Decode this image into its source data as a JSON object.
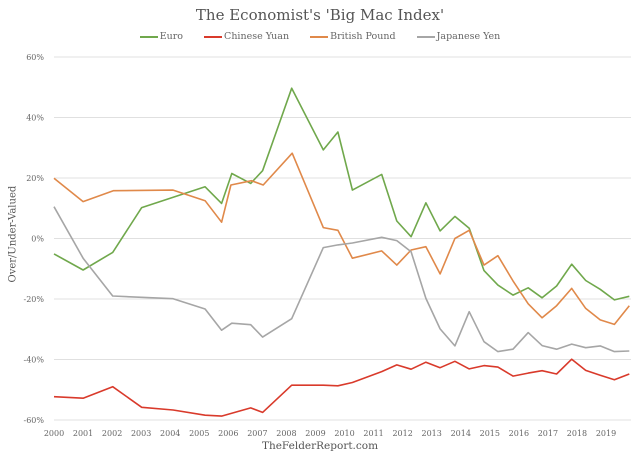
{
  "chart_data": {
    "type": "line",
    "title": "The Economist's 'Big Mac Index'",
    "xlabel": "",
    "ylabel": "Over/Under-Valued",
    "source": "TheFelderReport.com",
    "xlim": [
      2000,
      2019.86
    ],
    "ylim": [
      -60,
      60
    ],
    "yticks": [
      60,
      40,
      20,
      0,
      -20,
      -40,
      -60
    ],
    "ytick_labels": [
      "60%",
      "40%",
      "20%",
      "0%",
      "-20%",
      "-40%",
      "-60%"
    ],
    "xticks": [
      2000,
      2001,
      2002,
      2003,
      2004,
      2005,
      2006,
      2007,
      2008,
      2009,
      2010,
      2011,
      2012,
      2013,
      2014,
      2015,
      2016,
      2017,
      2018,
      2019
    ],
    "xtick_labels": [
      "2000",
      "2001",
      "2002",
      "2003",
      "2004",
      "2005",
      "2006",
      "2007",
      "2008",
      "2009",
      "2010",
      "2011",
      "2012",
      "2013",
      "2014",
      "2015",
      "2016",
      "2017",
      "2018",
      "2019"
    ],
    "grid": true,
    "legend_position": "top",
    "series": [
      {
        "name": "Euro",
        "color": "#70a84c",
        "x": [
          2000,
          2001,
          2002.02,
          2003.02,
          2005.2,
          2005.77,
          2006.12,
          2006.77,
          2007.18,
          2008.18,
          2009.27,
          2009.77,
          2010.27,
          2011.28,
          2011.8,
          2012.29,
          2012.8,
          2013.29,
          2013.8,
          2014.29,
          2014.8,
          2015.28,
          2015.8,
          2016.32,
          2016.8,
          2017.3,
          2017.82,
          2018.3,
          2018.8,
          2019.29,
          2019.8
        ],
        "y": [
          -5.1,
          -10.4,
          -4.6,
          10.2,
          17.1,
          11.6,
          21.5,
          18.2,
          22.4,
          49.7,
          29.3,
          35.2,
          16,
          21.2,
          5.8,
          0.6,
          11.8,
          2.5,
          7.3,
          3.4,
          -10.6,
          -15.4,
          -18.7,
          -16.3,
          -19.6,
          -15.7,
          -8.5,
          -13.9,
          -16.8,
          -20.3,
          -19.1
        ]
      },
      {
        "name": "Chinese Yuan",
        "color": "#d93a2b",
        "x": [
          2000,
          2001,
          2002.02,
          2003.02,
          2004.1,
          2005.2,
          2005.77,
          2006.77,
          2007.18,
          2008.18,
          2009.27,
          2009.77,
          2010.27,
          2011.28,
          2011.8,
          2012.29,
          2012.8,
          2013.29,
          2013.8,
          2014.29,
          2014.8,
          2015.28,
          2015.8,
          2016.32,
          2016.8,
          2017.3,
          2017.82,
          2018.3,
          2018.8,
          2019.29,
          2019.8
        ],
        "y": [
          -52.3,
          -52.8,
          -49,
          -55.8,
          -56.7,
          -58.4,
          -58.7,
          -56,
          -57.5,
          -48.5,
          -48.5,
          -48.7,
          -47.6,
          -44,
          -41.8,
          -43.2,
          -40.9,
          -42.7,
          -40.6,
          -43.1,
          -42,
          -42.5,
          -45.5,
          -44.5,
          -43.7,
          -44.8,
          -39.9,
          -43.6,
          -45.2,
          -46.7,
          -44.8
        ]
      },
      {
        "name": "British Pound",
        "color": "#e0894a",
        "x": [
          2000,
          2001,
          2002.04,
          2004.1,
          2005.2,
          2005.77,
          2006.09,
          2006.8,
          2007.2,
          2008.2,
          2009.27,
          2009.77,
          2010.27,
          2011.28,
          2011.8,
          2012.29,
          2012.8,
          2013.29,
          2013.8,
          2014.29,
          2014.8,
          2015.28,
          2015.8,
          2016.32,
          2016.8,
          2017.3,
          2017.82,
          2018.3,
          2018.8,
          2019.29,
          2019.8
        ],
        "y": [
          19.9,
          12.2,
          15.8,
          16,
          12.5,
          5.4,
          17.7,
          19.1,
          17.7,
          28.2,
          3.6,
          2.7,
          -6.5,
          -4.1,
          -8.8,
          -3.8,
          -2.7,
          -11.7,
          0,
          2.7,
          -8.8,
          -5.7,
          -14,
          -21.6,
          -26.2,
          -22.2,
          -16.5,
          -23.1,
          -26.9,
          -28.4,
          -22.2
        ]
      },
      {
        "name": "Japanese Yen",
        "color": "#a6a6a6",
        "x": [
          2000,
          2001,
          2002.02,
          2004.1,
          2005.2,
          2005.77,
          2006.12,
          2006.77,
          2007.18,
          2008.18,
          2009.27,
          2009.77,
          2010.27,
          2011.28,
          2011.8,
          2012.29,
          2012.8,
          2013.29,
          2013.8,
          2014.29,
          2014.8,
          2015.28,
          2015.8,
          2016.32,
          2016.8,
          2017.3,
          2017.82,
          2018.3,
          2018.8,
          2019.29,
          2019.8
        ],
        "y": [
          10.5,
          -6.5,
          -19,
          -19.9,
          -23.3,
          -30.3,
          -28,
          -28.5,
          -32.6,
          -26.5,
          -3,
          -2.1,
          -1.5,
          0.4,
          -0.7,
          -4.4,
          -19.8,
          -29.9,
          -35.5,
          -24.2,
          -34.1,
          -37.4,
          -36.6,
          -31.1,
          -35.4,
          -36.6,
          -34.9,
          -36.1,
          -35.5,
          -37.4,
          -37.2
        ]
      }
    ]
  }
}
